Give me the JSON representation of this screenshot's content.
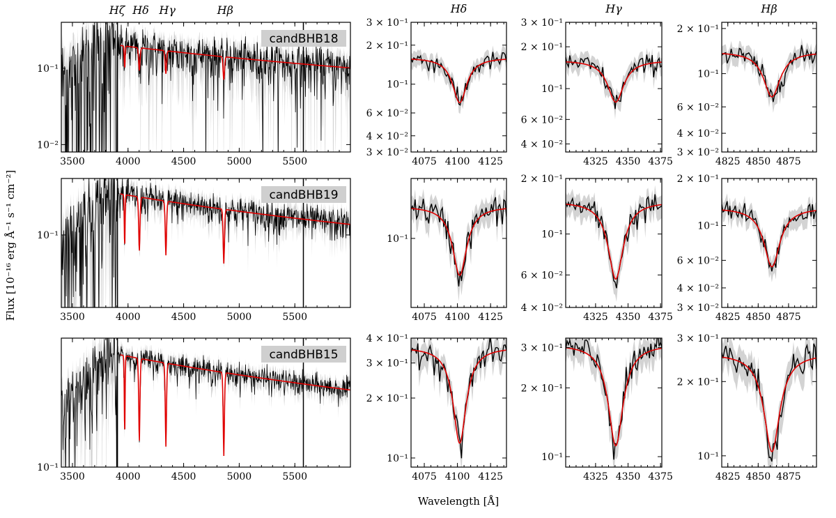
{
  "figure": {
    "ylabel": "Flux [10⁻¹⁶ erg Å⁻¹ s⁻¹ cm⁻²]",
    "xlabel": "Wavelength [Å]",
    "line_markers": [
      "Hζ",
      "Hδ",
      "Hγ",
      "Hβ"
    ],
    "colors": {
      "data": "#000000",
      "model": "#e00000",
      "error": "#d3d3d3"
    }
  },
  "chart_data": [
    {
      "type": "line",
      "row": 0,
      "object": "candBHB18",
      "panel": "full",
      "x_ticks": [
        "3500",
        "4000",
        "4500",
        "5000",
        "5500"
      ],
      "xlim": [
        3400,
        6000
      ],
      "y_ticks": [
        "10⁻²",
        "10⁻¹"
      ],
      "ylim": [
        0.008,
        0.4
      ],
      "yscale": "log",
      "continuum": 0.16,
      "depth": 0.5,
      "noise": 0.35
    },
    {
      "type": "line",
      "row": 0,
      "object": "candBHB18",
      "panel": "zoom",
      "title": "Hδ",
      "center": 4101.7,
      "x_ticks": [
        "4075",
        "4100",
        "4125"
      ],
      "xlim": [
        4065,
        4137
      ],
      "y_ticks": [
        "3 × 10⁻²",
        "4 × 10⁻²",
        "6 × 10⁻²",
        "10⁻¹",
        "2 × 10⁻¹",
        "3 × 10⁻¹"
      ],
      "ylim": [
        0.03,
        0.3
      ],
      "continuum": 0.16,
      "depth": 0.55,
      "width": 8
    },
    {
      "type": "line",
      "row": 0,
      "object": "candBHB18",
      "panel": "zoom",
      "title": "Hγ",
      "center": 4340.5,
      "x_ticks": [
        "4325",
        "4350",
        "4375"
      ],
      "xlim": [
        4302,
        4376
      ],
      "y_ticks": [
        "4 × 10⁻²",
        "6 × 10⁻²",
        "10⁻¹",
        "2 × 10⁻¹",
        "3 × 10⁻¹"
      ],
      "ylim": [
        0.035,
        0.3
      ],
      "continuum": 0.16,
      "depth": 0.5,
      "width": 9
    },
    {
      "type": "line",
      "row": 0,
      "object": "candBHB18",
      "panel": "zoom",
      "title": "Hβ",
      "center": 4861.3,
      "x_ticks": [
        "4825",
        "4850",
        "4875"
      ],
      "xlim": [
        4820,
        4898
      ],
      "y_ticks": [
        "3 × 10⁻²",
        "4 × 10⁻²",
        "6 × 10⁻²",
        "10⁻¹",
        "2 × 10⁻¹"
      ],
      "ylim": [
        0.03,
        0.22
      ],
      "continuum": 0.14,
      "depth": 0.5,
      "width": 10
    },
    {
      "type": "line",
      "row": 1,
      "object": "candBHB19",
      "panel": "full",
      "x_ticks": [
        "3500",
        "4000",
        "4500",
        "5000",
        "5500"
      ],
      "xlim": [
        3400,
        6000
      ],
      "y_ticks": [
        "10⁻¹"
      ],
      "ylim": [
        0.02,
        0.35
      ],
      "yscale": "log",
      "continuum": 0.2,
      "depth": 0.7,
      "noise": 0.18
    },
    {
      "type": "line",
      "row": 1,
      "object": "candBHB19",
      "panel": "zoom",
      "title": "Hδ",
      "center": 4101.7,
      "x_ticks": [
        "4075",
        "4100",
        "4125"
      ],
      "xlim": [
        4065,
        4137
      ],
      "y_ticks": [
        "10⁻¹"
      ],
      "ylim": [
        0.045,
        0.2
      ],
      "continuum": 0.145,
      "depth": 0.55,
      "width": 8
    },
    {
      "type": "line",
      "row": 1,
      "object": "candBHB19",
      "panel": "zoom",
      "title": "Hγ",
      "center": 4340.5,
      "x_ticks": [
        "4325",
        "4350",
        "4375"
      ],
      "xlim": [
        4302,
        4376
      ],
      "y_ticks": [
        "4 × 10⁻²",
        "6 × 10⁻²",
        "10⁻¹",
        "2 × 10⁻¹"
      ],
      "ylim": [
        0.04,
        0.2
      ],
      "continuum": 0.15,
      "depth": 0.62,
      "width": 9
    },
    {
      "type": "line",
      "row": 1,
      "object": "candBHB19",
      "panel": "zoom",
      "title": "Hβ",
      "center": 4861.3,
      "x_ticks": [
        "4825",
        "4850",
        "4875"
      ],
      "xlim": [
        4820,
        4898
      ],
      "y_ticks": [
        "3 × 10⁻²",
        "4 × 10⁻²",
        "6 × 10⁻²",
        "10⁻¹",
        "2 × 10⁻¹"
      ],
      "ylim": [
        0.03,
        0.2
      ],
      "continuum": 0.13,
      "depth": 0.58,
      "width": 10
    },
    {
      "type": "line",
      "row": 2,
      "object": "candBHB15",
      "panel": "full",
      "x_ticks": [
        "3500",
        "4000",
        "4500",
        "5000",
        "5500"
      ],
      "xlim": [
        3400,
        6000
      ],
      "y_ticks": [
        "10⁻¹"
      ],
      "ylim": [
        0.1,
        1.2
      ],
      "yscale": "log",
      "continuum": 0.7,
      "depth": 0.8,
      "noise": 0.12
    },
    {
      "type": "line",
      "row": 2,
      "object": "candBHB15",
      "panel": "zoom",
      "title": "Hδ",
      "center": 4101.7,
      "x_ticks": [
        "4075",
        "4100",
        "4125"
      ],
      "xlim": [
        4065,
        4137
      ],
      "y_ticks": [
        "10⁻¹",
        "2 × 10⁻¹",
        "3 × 10⁻¹",
        "4 × 10⁻¹"
      ],
      "ylim": [
        0.09,
        0.4
      ],
      "continuum": 0.36,
      "depth": 0.67,
      "width": 8
    },
    {
      "type": "line",
      "row": 2,
      "object": "candBHB15",
      "panel": "zoom",
      "title": "Hγ",
      "center": 4340.5,
      "x_ticks": [
        "4325",
        "4350",
        "4375"
      ],
      "xlim": [
        4302,
        4376
      ],
      "y_ticks": [
        "10⁻¹",
        "2 × 10⁻¹",
        "3 × 10⁻¹"
      ],
      "ylim": [
        0.09,
        0.33
      ],
      "continuum": 0.31,
      "depth": 0.64,
      "width": 9
    },
    {
      "type": "line",
      "row": 2,
      "object": "candBHB15",
      "panel": "zoom",
      "title": "Hβ",
      "center": 4861.3,
      "x_ticks": [
        "4825",
        "4850",
        "4875"
      ],
      "xlim": [
        4820,
        4898
      ],
      "y_ticks": [
        "10⁻¹",
        "2 × 10⁻¹",
        "3 × 10⁻¹"
      ],
      "ylim": [
        0.09,
        0.3
      ],
      "continuum": 0.26,
      "depth": 0.6,
      "width": 10
    }
  ]
}
